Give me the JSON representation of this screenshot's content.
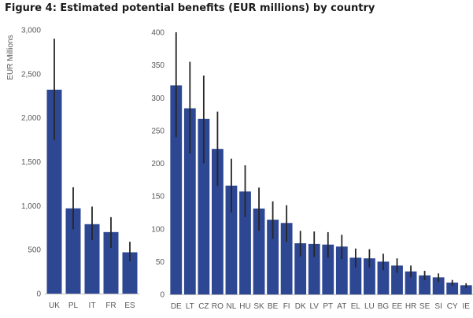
{
  "figure_title": "Figure 4: Estimated potential benefits (EUR millions) by country",
  "colors": {
    "bar": "#2e4792",
    "error": "#262626",
    "axis": "#bfbfbf",
    "text": "#595959"
  },
  "chart_data": [
    {
      "type": "bar",
      "title": "",
      "xlabel": "",
      "ylabel": "EUR Millions",
      "ylim": [
        0,
        3000
      ],
      "yticks": [
        0,
        500,
        1000,
        1500,
        2000,
        2500,
        3000
      ],
      "ytick_labels": [
        "0",
        "500",
        "1,000",
        "1,500",
        "2,000",
        "2,500",
        "3,000"
      ],
      "grid": false,
      "categories": [
        "UK",
        "PL",
        "IT",
        "FR",
        "ES"
      ],
      "values": [
        2320,
        970,
        790,
        700,
        470
      ],
      "error_low": [
        1750,
        730,
        610,
        520,
        370
      ],
      "error_high": [
        2900,
        1210,
        990,
        870,
        590
      ]
    },
    {
      "type": "bar",
      "title": "",
      "xlabel": "",
      "ylabel": "",
      "ylim": [
        0,
        400
      ],
      "yticks": [
        0,
        50,
        100,
        150,
        200,
        250,
        300,
        350,
        400
      ],
      "ytick_labels": [
        "0",
        "50",
        "100",
        "150",
        "200",
        "250",
        "300",
        "350",
        "400"
      ],
      "grid": false,
      "categories": [
        "DE",
        "LT",
        "CZ",
        "RO",
        "NL",
        "HU",
        "SK",
        "BE",
        "FI",
        "DK",
        "LV",
        "PT",
        "AT",
        "EL",
        "LU",
        "BG",
        "EE",
        "HR",
        "SE",
        "SI",
        "CY",
        "IE"
      ],
      "values": [
        319,
        284,
        268,
        222,
        166,
        157,
        131,
        114,
        109,
        78,
        77,
        76,
        73,
        56,
        55,
        50,
        44,
        35,
        29,
        26,
        18,
        14
      ],
      "error_low": [
        240,
        215,
        200,
        165,
        125,
        118,
        97,
        85,
        80,
        58,
        57,
        56,
        54,
        41,
        41,
        37,
        33,
        26,
        22,
        19,
        13,
        10
      ],
      "error_high": [
        400,
        355,
        334,
        279,
        207,
        197,
        163,
        142,
        136,
        97,
        96,
        95,
        91,
        70,
        69,
        62,
        55,
        44,
        36,
        32,
        22,
        17
      ]
    }
  ]
}
